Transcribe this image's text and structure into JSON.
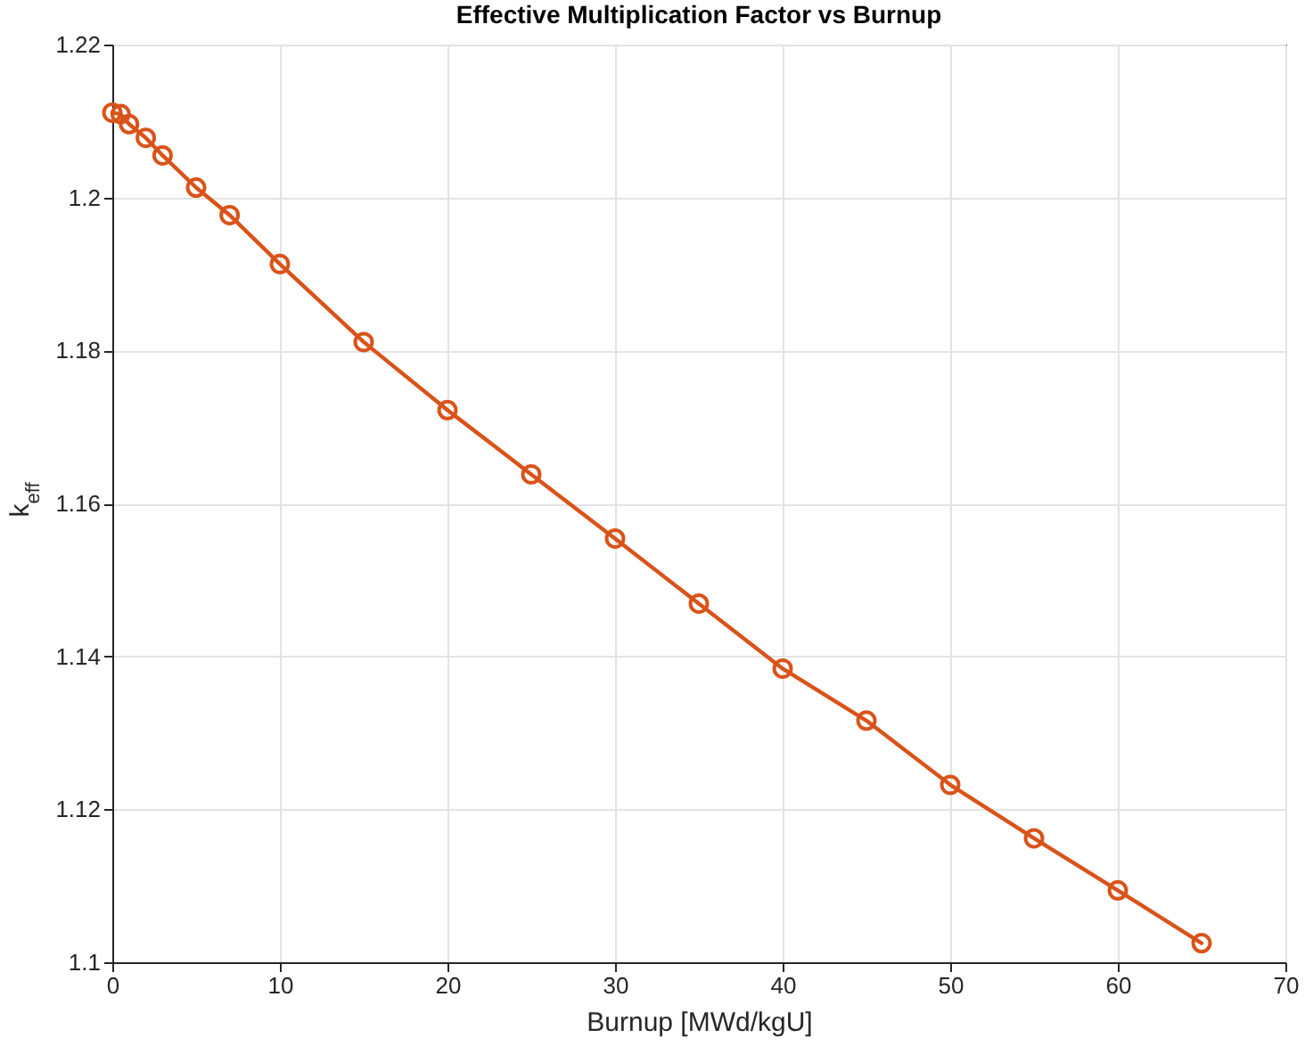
{
  "chart_data": {
    "type": "line",
    "title": "Effective Multiplication Factor vs Burnup",
    "xlabel": "Burnup [MWd/kgU]",
    "ylabel": "k$_{eff}$",
    "x": [
      0,
      0.5,
      1,
      2,
      3,
      5,
      7,
      10,
      15,
      20,
      25,
      30,
      35,
      40,
      45,
      50,
      55,
      60,
      65
    ],
    "series": [
      {
        "color": "#d95319",
        "values": [
          1.2111,
          1.2109,
          1.2096,
          1.2078,
          1.2055,
          1.2013,
          1.1977,
          1.1913,
          1.1811,
          1.1722,
          1.1638,
          1.1554,
          1.1469,
          1.1384,
          1.1316,
          1.1232,
          1.1162,
          1.1094,
          1.1025
        ]
      }
    ],
    "xlim": [
      0,
      70
    ],
    "xticks": [
      0,
      10,
      20,
      30,
      40,
      50,
      60,
      70
    ],
    "ylim": [
      1.1,
      1.22
    ],
    "yticks": [
      1.1,
      1.12,
      1.14,
      1.16,
      1.18,
      1.2,
      1.22
    ],
    "grid": true,
    "marker": "circle",
    "line_style": "solid"
  }
}
